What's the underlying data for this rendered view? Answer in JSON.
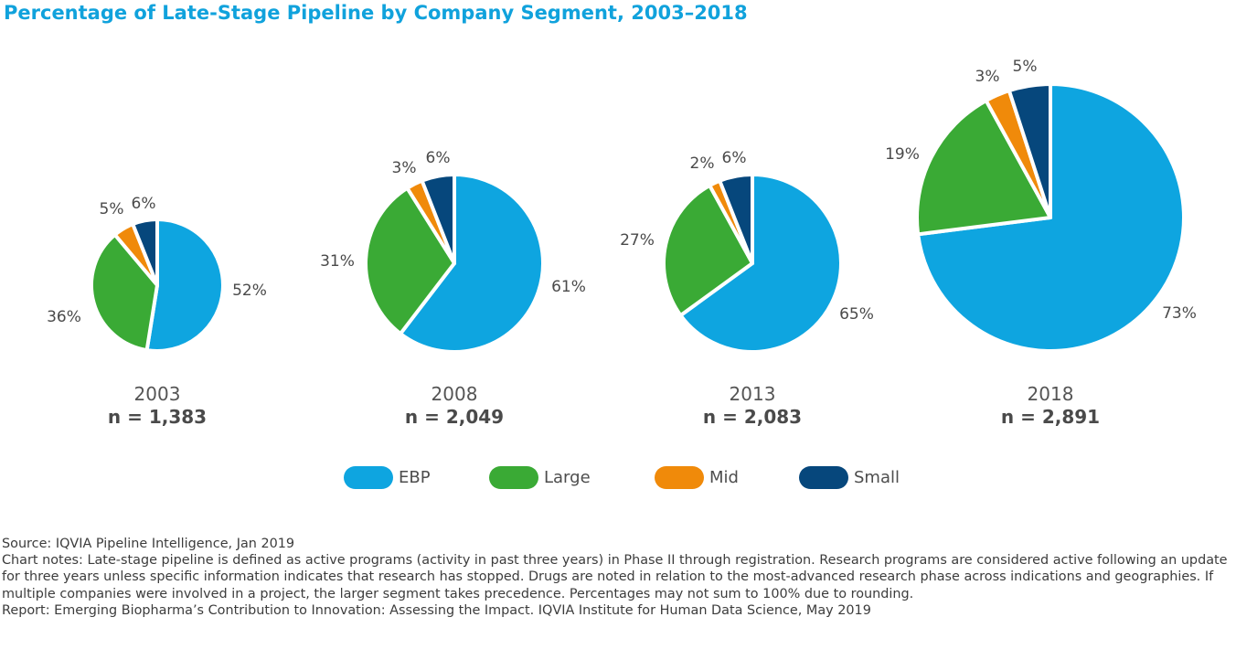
{
  "title": "Percentage of Late-Stage Pipeline by Company Segment, 2003–2018",
  "colors": {
    "EBP": "#0ea5e0",
    "Large": "#3aaa35",
    "Mid": "#f08a0a",
    "Small": "#06477c"
  },
  "chart_data": {
    "type": "pie",
    "title": "Percentage of Late-Stage Pipeline by Company Segment, 2003–2018",
    "segments": [
      "EBP",
      "Large",
      "Mid",
      "Small"
    ],
    "pies": [
      {
        "year": "2003",
        "n_label": "n = 1,383",
        "n": 1383,
        "values": [
          52,
          36,
          5,
          6
        ],
        "labels": [
          "52%",
          "36%",
          "5%",
          "6%"
        ]
      },
      {
        "year": "2008",
        "n_label": "n = 2,049",
        "n": 2049,
        "values": [
          61,
          31,
          3,
          6
        ],
        "labels": [
          "61%",
          "31%",
          "3%",
          "6%"
        ]
      },
      {
        "year": "2013",
        "n_label": "n = 2,083",
        "n": 2083,
        "values": [
          65,
          27,
          2,
          6
        ],
        "labels": [
          "65%",
          "27%",
          "2%",
          "6%"
        ]
      },
      {
        "year": "2018",
        "n_label": "n = 2,891",
        "n": 2891,
        "values": [
          73,
          19,
          3,
          5
        ],
        "labels": [
          "73%",
          "19%",
          "3%",
          "5%"
        ]
      }
    ],
    "legend": [
      "EBP",
      "Large",
      "Mid",
      "Small"
    ],
    "legend_position": "bottom-center"
  },
  "footer": {
    "source": "Source: IQVIA Pipeline Intelligence, Jan 2019",
    "notes": "Chart notes: Late-stage pipeline is defined as active programs (activity in past three years) in Phase II through registration. Research programs are considered active following an update for three years unless specific information indicates that research has stopped. Drugs are noted in relation to the most-advanced research phase across indications and geographies. If multiple companies were involved in a project, the larger segment takes precedence. Percentages may not sum to 100% due to rounding.",
    "report": "Report: Emerging Biopharma’s Contribution to Innovation: Assessing the Impact. IQVIA Institute for Human Data Science, May 2019"
  }
}
